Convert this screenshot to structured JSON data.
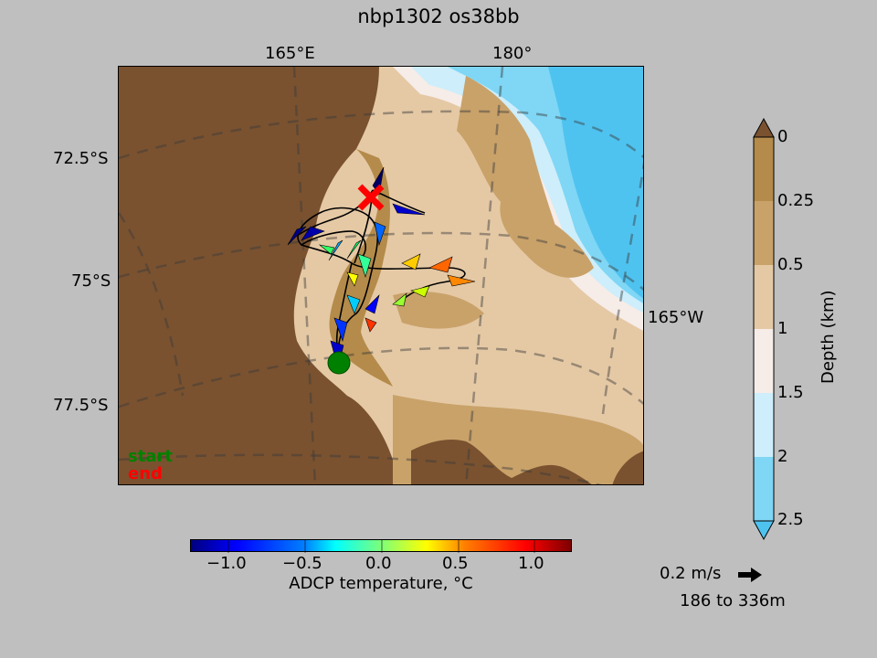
{
  "title": "nbp1302 os38bb",
  "axes": {
    "top_ticks": [
      "165°E",
      "180°"
    ],
    "left_ticks": [
      "72.5°S",
      "75°S",
      "77.5°S"
    ],
    "right_ticks": [
      "165°W"
    ]
  },
  "legend": {
    "start_label": "start",
    "end_label": "end",
    "start_color": "#008000",
    "end_color": "#ff0000"
  },
  "temperature_colorbar": {
    "label": "ADCP temperature, °C",
    "ticks": [
      "−1.0",
      "−0.5",
      "0.0",
      "0.5",
      "1.0"
    ],
    "range": [
      -1.25,
      1.25
    ],
    "colormap": "jet"
  },
  "depth_colorbar": {
    "label": "Depth (km)",
    "ticks": [
      "0",
      "0.25",
      "0.5",
      "1",
      "1.5",
      "2",
      "2.5"
    ],
    "colors": [
      "#7a5230",
      "#b48b4a",
      "#c9a26a",
      "#e5c9a5",
      "#f6ece8",
      "#cdeefa",
      "#7fd6f5",
      "#4fc3f0"
    ]
  },
  "scale": {
    "speed_label": "0.2 m/s",
    "depth_range_label": "186 to 336m"
  },
  "colors": {
    "land": "#7a5230",
    "background": "#bfbfbf",
    "track": "#000000"
  }
}
